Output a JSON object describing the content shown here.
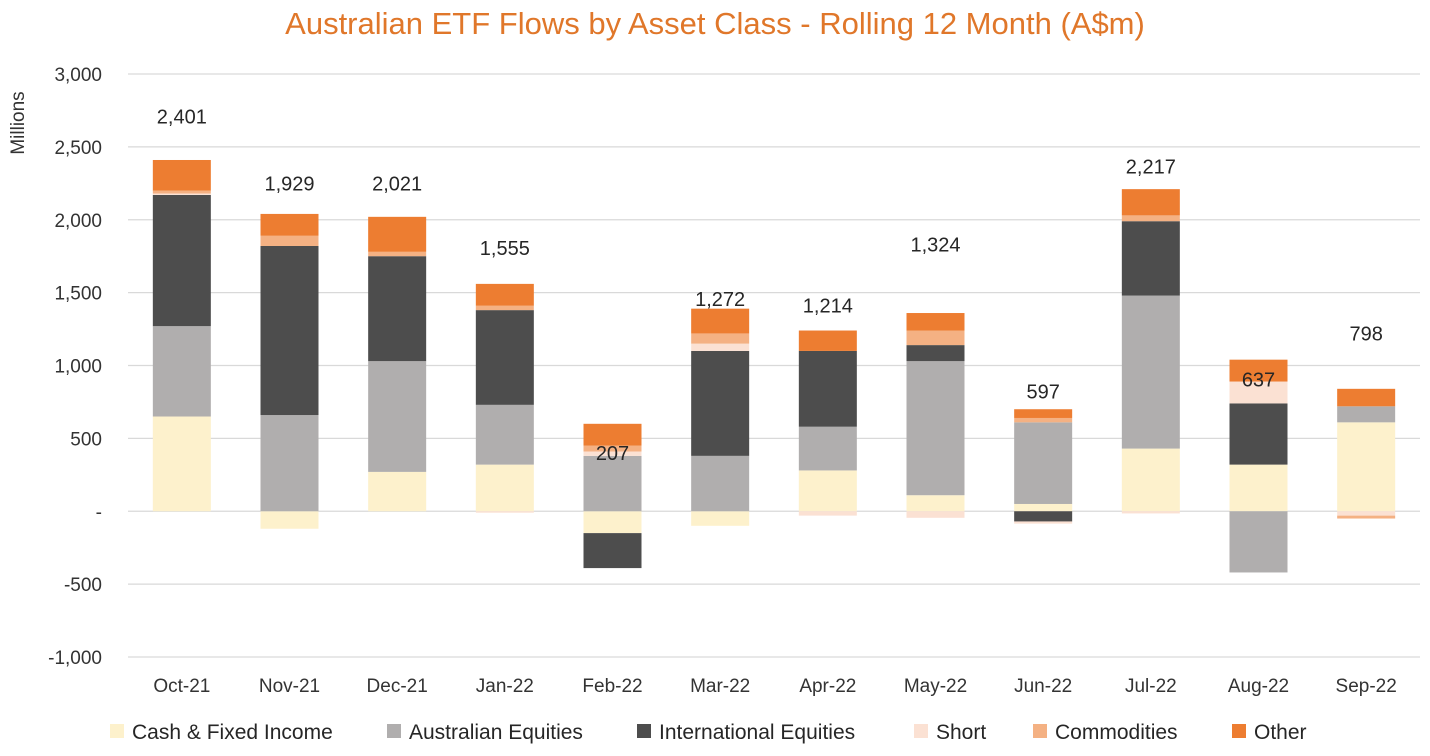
{
  "chart_data": {
    "type": "bar",
    "stacked": true,
    "title": "Australian ETF Flows by Asset Class - Rolling 12 Month (A$m)",
    "ylabel": "Millions",
    "xlabel": "",
    "ylim": [
      -1000,
      3000
    ],
    "yticks": [
      {
        "value": 3000,
        "label": "3,000"
      },
      {
        "value": 2500,
        "label": "2,500"
      },
      {
        "value": 2000,
        "label": "2,000"
      },
      {
        "value": 1500,
        "label": "1,500"
      },
      {
        "value": 1000,
        "label": "1,000"
      },
      {
        "value": 500,
        "label": "500"
      },
      {
        "value": 0,
        "label": "-"
      },
      {
        "value": -500,
        "label": "-500"
      },
      {
        "value": -1000,
        "label": "-1,000"
      }
    ],
    "grid": true,
    "legend_position": "bottom",
    "categories": [
      "Oct-21",
      "Nov-21",
      "Dec-21",
      "Jan-22",
      "Feb-22",
      "Mar-22",
      "Apr-22",
      "May-22",
      "Jun-22",
      "Jul-22",
      "Aug-22",
      "Sep-22"
    ],
    "series": [
      {
        "name": "Cash & Fixed Income",
        "color": "#fdf1cc",
        "values": [
          650,
          -120,
          270,
          320,
          -150,
          -100,
          280,
          110,
          50,
          430,
          320,
          610
        ]
      },
      {
        "name": "Australian Equities",
        "color": "#b0aeae",
        "values": [
          620,
          660,
          760,
          410,
          380,
          380,
          300,
          920,
          560,
          1050,
          -420,
          110
        ]
      },
      {
        "name": "International Equities",
        "color": "#4d4d4d",
        "values": [
          900,
          1160,
          720,
          650,
          -240,
          720,
          520,
          110,
          -70,
          510,
          420,
          0
        ]
      },
      {
        "name": "Short",
        "color": "#fbe1d3",
        "values": [
          10,
          0,
          0,
          -10,
          30,
          50,
          -30,
          -45,
          -15,
          -15,
          150,
          -30
        ]
      },
      {
        "name": "Commodities",
        "color": "#f4b183",
        "values": [
          20,
          70,
          30,
          30,
          40,
          70,
          0,
          100,
          30,
          40,
          0,
          -20
        ]
      },
      {
        "name": "Other",
        "color": "#ed7d31",
        "values": [
          210,
          150,
          240,
          150,
          150,
          170,
          140,
          120,
          60,
          180,
          150,
          120
        ]
      }
    ],
    "totals": [
      {
        "label": "2,401",
        "y": 2710
      },
      {
        "label": "1,929",
        "y": 2250
      },
      {
        "label": "2,021",
        "y": 2250
      },
      {
        "label": "1,555",
        "y": 1805
      },
      {
        "label": "207",
        "y": 400
      },
      {
        "label": "1,272",
        "y": 1455
      },
      {
        "label": "1,214",
        "y": 1410
      },
      {
        "label": "1,324",
        "y": 1830
      },
      {
        "label": "597",
        "y": 820
      },
      {
        "label": "2,217",
        "y": 2365
      },
      {
        "label": "637",
        "y": 905
      },
      {
        "label": "798",
        "y": 1220
      }
    ]
  }
}
